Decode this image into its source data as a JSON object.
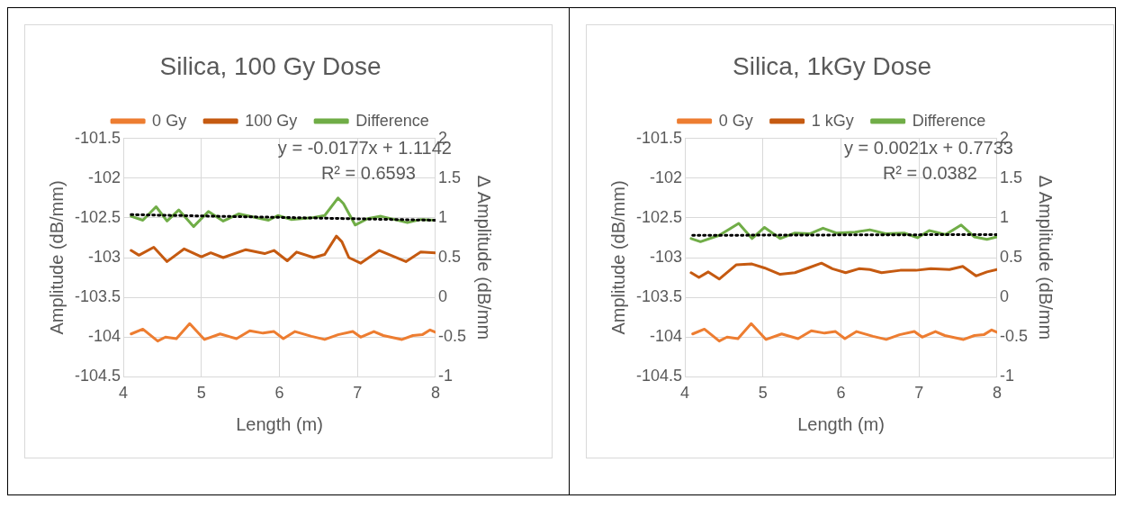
{
  "chart_data": [
    {
      "type": "line",
      "title": "Silica, 100 Gy Dose",
      "xlabel": "Length (m)",
      "ylabel": "Amplitude (dB/mm)",
      "y2label": "Δ Amplitude (dB/mm",
      "xlim": [
        4,
        8
      ],
      "xticks": [
        4,
        5,
        6,
        7,
        8
      ],
      "ylim": [
        -104.5,
        -101.5
      ],
      "yticks": [
        -104.5,
        -104,
        -103.5,
        -103,
        -102.5,
        -102,
        -101.5
      ],
      "y2lim": [
        -1,
        2
      ],
      "y2ticks": [
        -1,
        -0.5,
        0,
        0.5,
        1,
        1.5,
        2
      ],
      "grid": true,
      "legend": "top",
      "marker": "none",
      "annotations": [
        "y = -0.0177x + 1.1142",
        "R² = 0.6593"
      ],
      "series": [
        {
          "name": "0 Gy",
          "color": "#ed7d31",
          "x": [
            4.1,
            4.25,
            4.44,
            4.54,
            4.68,
            4.85,
            5.04,
            5.24,
            5.45,
            5.62,
            5.79,
            5.93,
            6.05,
            6.2,
            6.41,
            6.58,
            6.75,
            6.94,
            7.04,
            7.21,
            7.33,
            7.57,
            7.71,
            7.83,
            7.93,
            8.0
          ],
          "values": [
            -103.96,
            -103.9,
            -104.05,
            -104.0,
            -104.02,
            -103.83,
            -104.03,
            -103.96,
            -104.02,
            -103.92,
            -103.95,
            -103.93,
            -104.02,
            -103.93,
            -103.99,
            -104.03,
            -103.97,
            -103.93,
            -104.0,
            -103.93,
            -103.98,
            -104.03,
            -103.98,
            -103.97,
            -103.91,
            -103.94
          ]
        },
        {
          "name": "100 Gy",
          "color": "#c55a11",
          "x": [
            4.1,
            4.2,
            4.39,
            4.56,
            4.78,
            5.0,
            5.12,
            5.28,
            5.57,
            5.81,
            5.93,
            6.1,
            6.22,
            6.44,
            6.58,
            6.73,
            6.8,
            6.89,
            7.04,
            7.28,
            7.62,
            7.81,
            8.0
          ],
          "values": [
            -102.91,
            -102.97,
            -102.87,
            -103.05,
            -102.89,
            -102.99,
            -102.94,
            -103.0,
            -102.9,
            -102.95,
            -102.91,
            -103.04,
            -102.93,
            -103.0,
            -102.96,
            -102.73,
            -102.8,
            -103.0,
            -103.07,
            -102.91,
            -103.05,
            -102.93,
            -102.94
          ]
        },
        {
          "name": "Difference",
          "color": "#70ad47",
          "axis": "y2",
          "x": [
            4.1,
            4.25,
            4.42,
            4.56,
            4.71,
            4.9,
            5.09,
            5.28,
            5.48,
            5.67,
            5.86,
            5.98,
            6.15,
            6.41,
            6.58,
            6.75,
            6.82,
            6.97,
            7.13,
            7.3,
            7.47,
            7.64,
            7.81,
            8.0
          ],
          "values": [
            1.02,
            0.97,
            1.14,
            0.96,
            1.1,
            0.89,
            1.08,
            0.96,
            1.05,
            1.01,
            0.97,
            1.03,
            0.98,
            1.0,
            1.03,
            1.25,
            1.18,
            0.91,
            0.99,
            1.02,
            0.98,
            0.94,
            0.98,
            0.97
          ]
        },
        {
          "color": "#000000",
          "axis": "y2",
          "line_style": "dotted",
          "x": [
            4.1,
            8.0
          ],
          "values": [
            1.04,
            0.97
          ]
        }
      ]
    },
    {
      "type": "line",
      "title": "Silica, 1kGy Dose",
      "xlabel": "Length (m)",
      "ylabel": "Amplitude (dB/mm)",
      "y2label": "Δ Amplitude (dB/mm",
      "xlim": [
        4,
        8
      ],
      "xticks": [
        4,
        5,
        6,
        7,
        8
      ],
      "ylim": [
        -104.5,
        -101.5
      ],
      "yticks": [
        -104.5,
        -104,
        -103.5,
        -103,
        -102.5,
        -102,
        -101.5
      ],
      "y2lim": [
        -1,
        2
      ],
      "y2ticks": [
        -1,
        -0.5,
        0,
        0.5,
        1,
        1.5,
        2
      ],
      "grid": true,
      "legend": "top",
      "marker": "none",
      "annotations": [
        "y = 0.0021x + 0.7733",
        "R² = 0.0382"
      ],
      "series": [
        {
          "name": "0 Gy",
          "color": "#ed7d31",
          "x": [
            4.1,
            4.25,
            4.44,
            4.54,
            4.68,
            4.85,
            5.04,
            5.24,
            5.45,
            5.62,
            5.79,
            5.93,
            6.05,
            6.2,
            6.41,
            6.58,
            6.75,
            6.94,
            7.04,
            7.21,
            7.33,
            7.57,
            7.71,
            7.83,
            7.93,
            8.0
          ],
          "values": [
            -103.96,
            -103.9,
            -104.05,
            -104.0,
            -104.02,
            -103.83,
            -104.03,
            -103.96,
            -104.02,
            -103.92,
            -103.95,
            -103.93,
            -104.02,
            -103.93,
            -103.99,
            -104.03,
            -103.97,
            -103.93,
            -104.0,
            -103.93,
            -103.98,
            -104.03,
            -103.98,
            -103.97,
            -103.91,
            -103.94
          ]
        },
        {
          "name": "1 kGy",
          "color": "#c55a11",
          "x": [
            4.08,
            4.18,
            4.3,
            4.44,
            4.66,
            4.86,
            5.02,
            5.22,
            5.41,
            5.58,
            5.75,
            5.89,
            6.06,
            6.23,
            6.37,
            6.52,
            6.76,
            6.96,
            7.15,
            7.39,
            7.56,
            7.73,
            7.87,
            8.0
          ],
          "values": [
            -103.19,
            -103.25,
            -103.18,
            -103.27,
            -103.09,
            -103.08,
            -103.13,
            -103.21,
            -103.19,
            -103.13,
            -103.07,
            -103.14,
            -103.19,
            -103.14,
            -103.15,
            -103.19,
            -103.16,
            -103.16,
            -103.14,
            -103.15,
            -103.11,
            -103.23,
            -103.18,
            -103.15
          ]
        },
        {
          "name": "Difference",
          "color": "#70ad47",
          "axis": "y2",
          "x": [
            4.08,
            4.2,
            4.44,
            4.69,
            4.86,
            5.02,
            5.22,
            5.41,
            5.6,
            5.77,
            5.94,
            6.18,
            6.37,
            6.57,
            6.81,
            6.98,
            7.13,
            7.34,
            7.54,
            7.71,
            7.87,
            8.0
          ],
          "values": [
            0.74,
            0.7,
            0.78,
            0.93,
            0.74,
            0.88,
            0.74,
            0.81,
            0.8,
            0.87,
            0.81,
            0.82,
            0.85,
            0.8,
            0.81,
            0.75,
            0.84,
            0.79,
            0.91,
            0.76,
            0.73,
            0.76
          ]
        },
        {
          "color": "#000000",
          "axis": "y2",
          "line_style": "dotted",
          "x": [
            4.1,
            8.0
          ],
          "values": [
            0.78,
            0.79
          ]
        }
      ]
    }
  ]
}
